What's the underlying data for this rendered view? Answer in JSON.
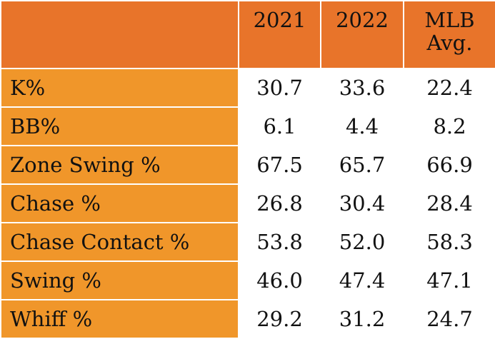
{
  "table": {
    "columns": {
      "year1": "2021",
      "year2": "2022",
      "mlb_line1": "MLB",
      "mlb_line2": "Avg."
    },
    "rows": [
      {
        "label": "K%",
        "v2021": "30.7",
        "v2022": "33.6",
        "mlb": "22.4"
      },
      {
        "label": "BB%",
        "v2021": "6.1",
        "v2022": "4.4",
        "mlb": "8.2"
      },
      {
        "label": "Zone Swing %",
        "v2021": "67.5",
        "v2022": "65.7",
        "mlb": "66.9"
      },
      {
        "label": "Chase %",
        "v2021": "26.8",
        "v2022": "30.4",
        "mlb": "28.4"
      },
      {
        "label": "Chase Contact %",
        "v2021": "53.8",
        "v2022": "52.0",
        "mlb": "58.3"
      },
      {
        "label": "Swing %",
        "v2021": "46.0",
        "v2022": "47.4",
        "mlb": "47.1"
      },
      {
        "label": "Whiff %",
        "v2021": "29.2",
        "v2022": "31.2",
        "mlb": "24.7"
      }
    ]
  },
  "colors": {
    "header_bg": "#e8742a",
    "label_bg": "#f0962a",
    "cell_bg": "#ffffff",
    "border": "#ffffff"
  }
}
